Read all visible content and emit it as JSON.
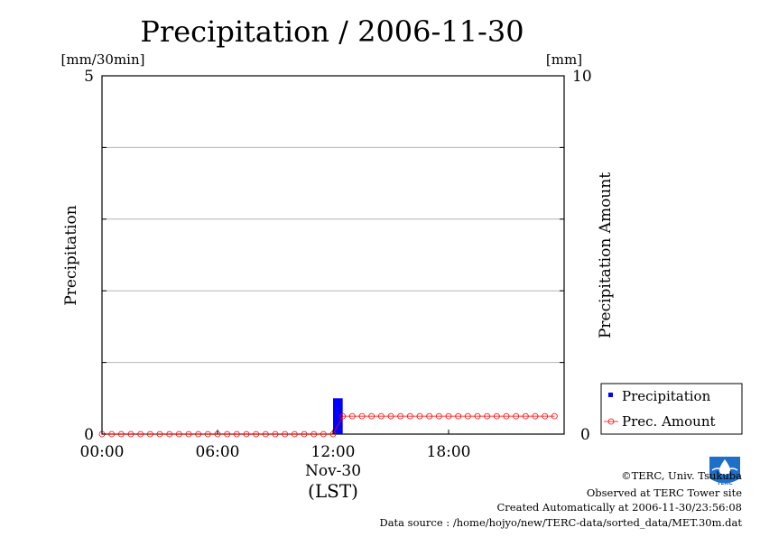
{
  "chart_data": {
    "type": "bar",
    "title": "Precipitation / 2006-11-30",
    "y_left": {
      "label": "Precipitation",
      "unit": "[mm/30min]",
      "range": [
        0,
        5
      ],
      "tick_labels": [
        "0",
        "5"
      ]
    },
    "y_right": {
      "label": "Precipitation Amount",
      "unit": "[mm]",
      "range": [
        0,
        10
      ],
      "tick_labels": [
        "0",
        "10"
      ]
    },
    "x_axis": {
      "tick_labels": [
        "00:00",
        "06:00",
        "12:00",
        "18:00"
      ],
      "date_label": "Nov-30",
      "time_zone_label": "(LST)",
      "range_hours": [
        0,
        24
      ]
    },
    "grid": true,
    "legend_position": "bottom-right",
    "series": [
      {
        "name": "Precipitation",
        "kind": "bar",
        "axis": "left",
        "color": "#0000ff",
        "points": [
          {
            "time": "12:00",
            "value": 0.5
          }
        ]
      },
      {
        "name": "Prec. Amount",
        "kind": "line-markers",
        "axis": "right",
        "color": "#ff0000",
        "x_hours": [
          0,
          0.5,
          1,
          1.5,
          2,
          2.5,
          3,
          3.5,
          4,
          4.5,
          5,
          5.5,
          6,
          6.5,
          7,
          7.5,
          8,
          8.5,
          9,
          9.5,
          10,
          10.5,
          11,
          11.5,
          12,
          12.5,
          13,
          13.5,
          14,
          14.5,
          15,
          15.5,
          16,
          16.5,
          17,
          17.5,
          18,
          18.5,
          19,
          19.5,
          20,
          20.5,
          21,
          21.5,
          22,
          22.5,
          23,
          23.5
        ],
        "values": [
          0,
          0,
          0,
          0,
          0,
          0,
          0,
          0,
          0,
          0,
          0,
          0,
          0,
          0,
          0,
          0,
          0,
          0,
          0,
          0,
          0,
          0,
          0,
          0,
          0,
          0.5,
          0.5,
          0.5,
          0.5,
          0.5,
          0.5,
          0.5,
          0.5,
          0.5,
          0.5,
          0.5,
          0.5,
          0.5,
          0.5,
          0.5,
          0.5,
          0.5,
          0.5,
          0.5,
          0.5,
          0.5,
          0.5,
          0.5
        ]
      }
    ]
  },
  "footer": {
    "copyright": "©TERC, Univ. Tsukuba",
    "observed": "Observed at TERC Tower site",
    "created": "Created Automatically at 2006-11-30/23:56:08",
    "source": "Data source : /home/hojyo/new/TERC-data/sorted_data/MET.30m.dat"
  },
  "logo": {
    "text": "TERC",
    "colors": {
      "primary": "#1e6fc8"
    }
  }
}
